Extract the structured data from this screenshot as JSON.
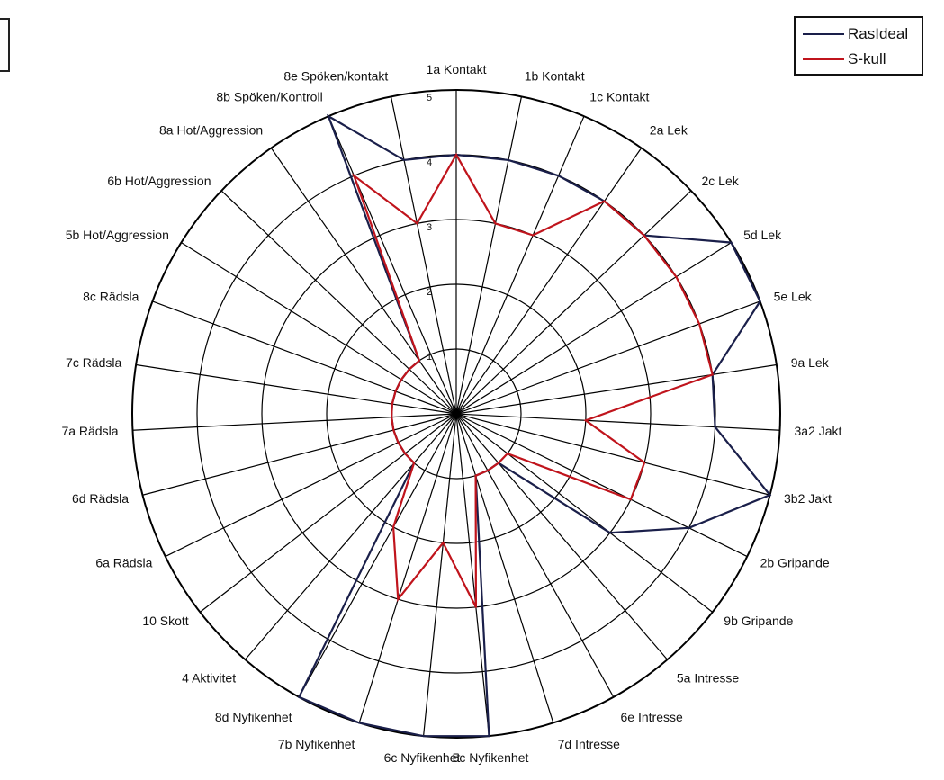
{
  "chart_data": {
    "type": "radar",
    "title": "",
    "categories": [
      "1a Kontakt",
      "1b Kontakt",
      "1c Kontakt",
      "2a Lek",
      "2c Lek",
      "5d Lek",
      "5e Lek",
      "9a Lek",
      "3a2 Jakt",
      "3b2 Jakt",
      "2b Gripande",
      "9b Gripande",
      "5a Intresse",
      "6e Intresse",
      "7d Intresse",
      "5c Nyfikenhet",
      "6c Nyfikenhet",
      "7b Nyfikenhet",
      "8d Nyfikenhet",
      "4 Aktivitet",
      "10 Skott",
      "6a Rädsla",
      "6d Rädsla",
      "7a Rädsla",
      "7c Rädsla",
      "8c Rädsla",
      "5b Hot/Aggression",
      "6b Hot/Aggression",
      "8a Hot/Aggression",
      "8b Spöken/Kontroll",
      "8e Spöken/kontakt"
    ],
    "rlim": [
      0,
      5
    ],
    "ticks": [
      "1",
      "2",
      "3",
      "4",
      "5"
    ],
    "grid": true,
    "legend_position": "top-right",
    "series": [
      {
        "name": "RasIdeal",
        "color": "#1a1f4a",
        "values": [
          4,
          4,
          4,
          4,
          4,
          5,
          5,
          4,
          4,
          5,
          4,
          3,
          1,
          1,
          1,
          5,
          5,
          5,
          5,
          1,
          1,
          1,
          1,
          1,
          1,
          1,
          1,
          1,
          1,
          5,
          4
        ]
      },
      {
        "name": "S-kull",
        "color": "#c0141c",
        "values": [
          4,
          3,
          3,
          4,
          4,
          4,
          4,
          4,
          2,
          3,
          3,
          1,
          1,
          1,
          1,
          3,
          2,
          3,
          2,
          1,
          1,
          1,
          1,
          1,
          1,
          1,
          1,
          1,
          1,
          4,
          3
        ]
      }
    ]
  },
  "legend": {
    "items": [
      {
        "label": "RasIdeal",
        "color": "#1a1f4a"
      },
      {
        "label": "S-kull",
        "color": "#c0141c"
      }
    ]
  }
}
